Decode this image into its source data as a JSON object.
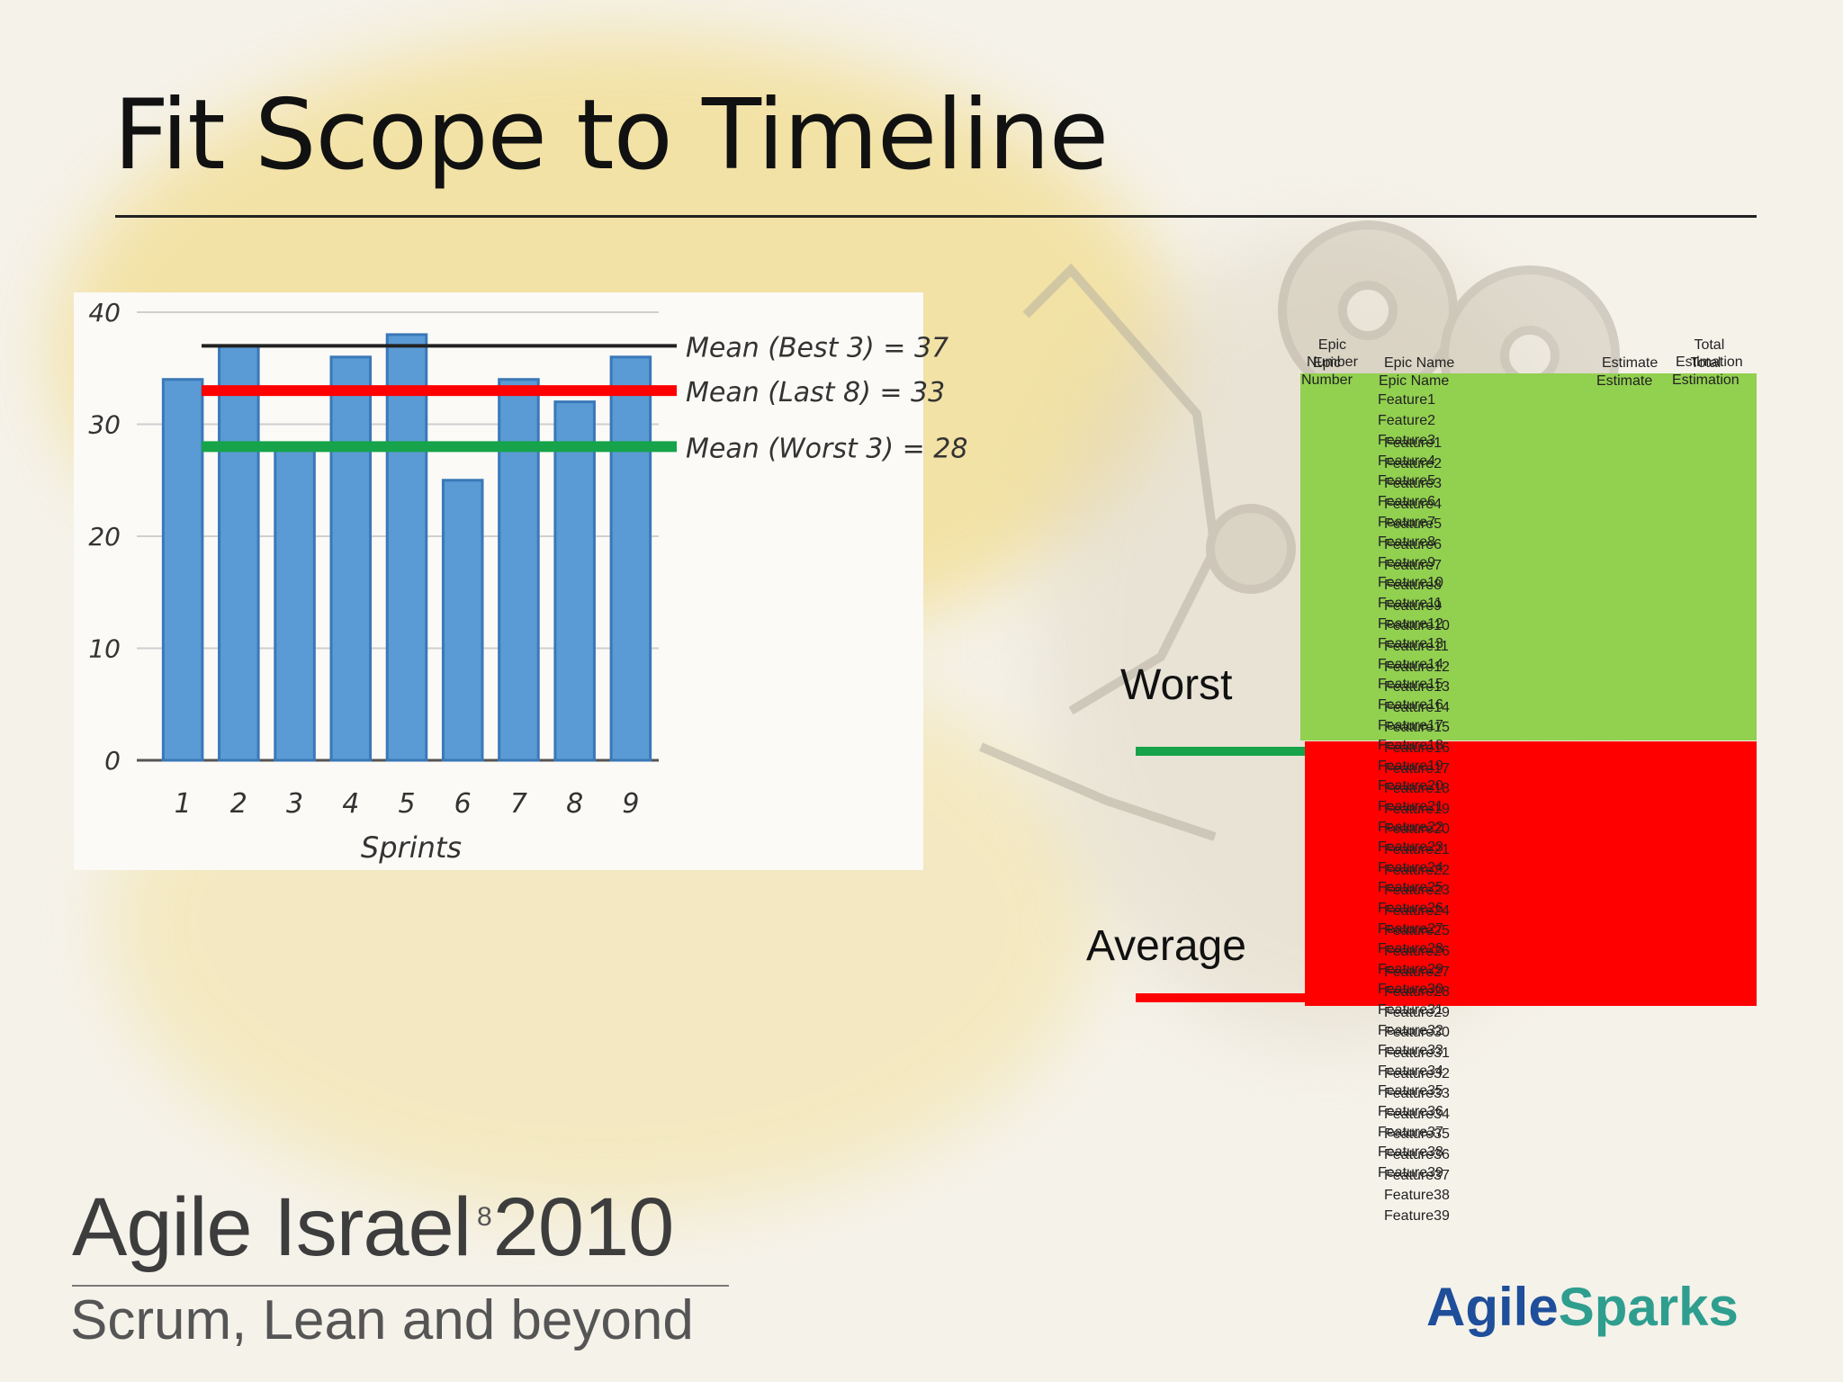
{
  "slide": {
    "title": "Fit Scope to Timeline",
    "page_number": "8"
  },
  "chart_data": {
    "type": "bar",
    "categories": [
      "1",
      "2",
      "3",
      "4",
      "5",
      "6",
      "7",
      "8",
      "9"
    ],
    "values": [
      34,
      37,
      28,
      36,
      38,
      25,
      34,
      32,
      36
    ],
    "xlabel": "Sprints",
    "ylabel": "",
    "ylim": [
      0,
      40
    ],
    "yticks": [
      "0",
      "10",
      "20",
      "30",
      "40"
    ],
    "grid": true,
    "bar_color": "#5b9bd5",
    "reference_lines": [
      {
        "label": "Mean (Best 3) = 37",
        "value": 37,
        "color": "#222222"
      },
      {
        "label": "Mean (Last 8) = 33",
        "value": 33,
        "color": "#ff0000"
      },
      {
        "label": "Mean (Worst 3) = 28",
        "value": 28,
        "color": "#16a34a"
      }
    ]
  },
  "markers": {
    "worst": {
      "label": "Worst",
      "color": "#16a34a"
    },
    "average": {
      "label": "Average",
      "color": "#ff0000"
    }
  },
  "sheet": {
    "headers": {
      "epic_number": "Epic\nNumber",
      "epic_name": "Epic Name",
      "estimate": "Estimate",
      "total_estimation": "Total\nEstimation"
    },
    "duplicate_headers": {
      "epic_number": "Epic\nNumber",
      "epic_name": "Epic Name",
      "estimate": "Estimate",
      "total_estimation": "Total\nEstimation"
    },
    "zones": {
      "green": "#92d050",
      "red": "#ff0000"
    },
    "features_primary": [
      "Feature1",
      "Feature2",
      "Feature3",
      "Feature4",
      "Feature5",
      "Feature6",
      "Feature7",
      "Feature8",
      "Feature9",
      "Feature10",
      "Feature11",
      "Feature12",
      "Feature13",
      "Feature14",
      "Feature15",
      "Feature16",
      "Feature17",
      "Feature18",
      "Feature19",
      "Feature20",
      "Feature21",
      "Feature22",
      "Feature23",
      "Feature24",
      "Feature25",
      "Feature26",
      "Feature27",
      "Feature28",
      "Feature29",
      "Feature30",
      "Feature31",
      "Feature32",
      "Feature33",
      "Feature34",
      "Feature35",
      "Feature36",
      "Feature37",
      "Feature38",
      "Feature39"
    ],
    "features_overlay": [
      "Feature1",
      "Feature2",
      "Feature3",
      "Feature4",
      "Feature5",
      "Feature6",
      "Feature7",
      "Feature8",
      "Feature9",
      "Feature10",
      "Feature11",
      "Feature12",
      "Feature13",
      "Feature14",
      "Feature15",
      "Feature16",
      "Feature17",
      "Feature18",
      "Feature19",
      "Feature20",
      "Feature21",
      "Feature22",
      "Feature23",
      "Feature24",
      "Feature25",
      "Feature26",
      "Feature27",
      "Feature28",
      "Feature29",
      "Feature30",
      "Feature31",
      "Feature32",
      "Feature33",
      "Feature34",
      "Feature35",
      "Feature36",
      "Feature37",
      "Feature38",
      "Feature39"
    ]
  },
  "footer": {
    "event": "Agile Israel 2010",
    "tagline": "Scrum, Lean and beyond",
    "logo_part1": "Agile",
    "logo_part2": "Sparks",
    "logo_colors": {
      "part1": "#1f4e9a",
      "part2": "#2f9e8f"
    }
  }
}
